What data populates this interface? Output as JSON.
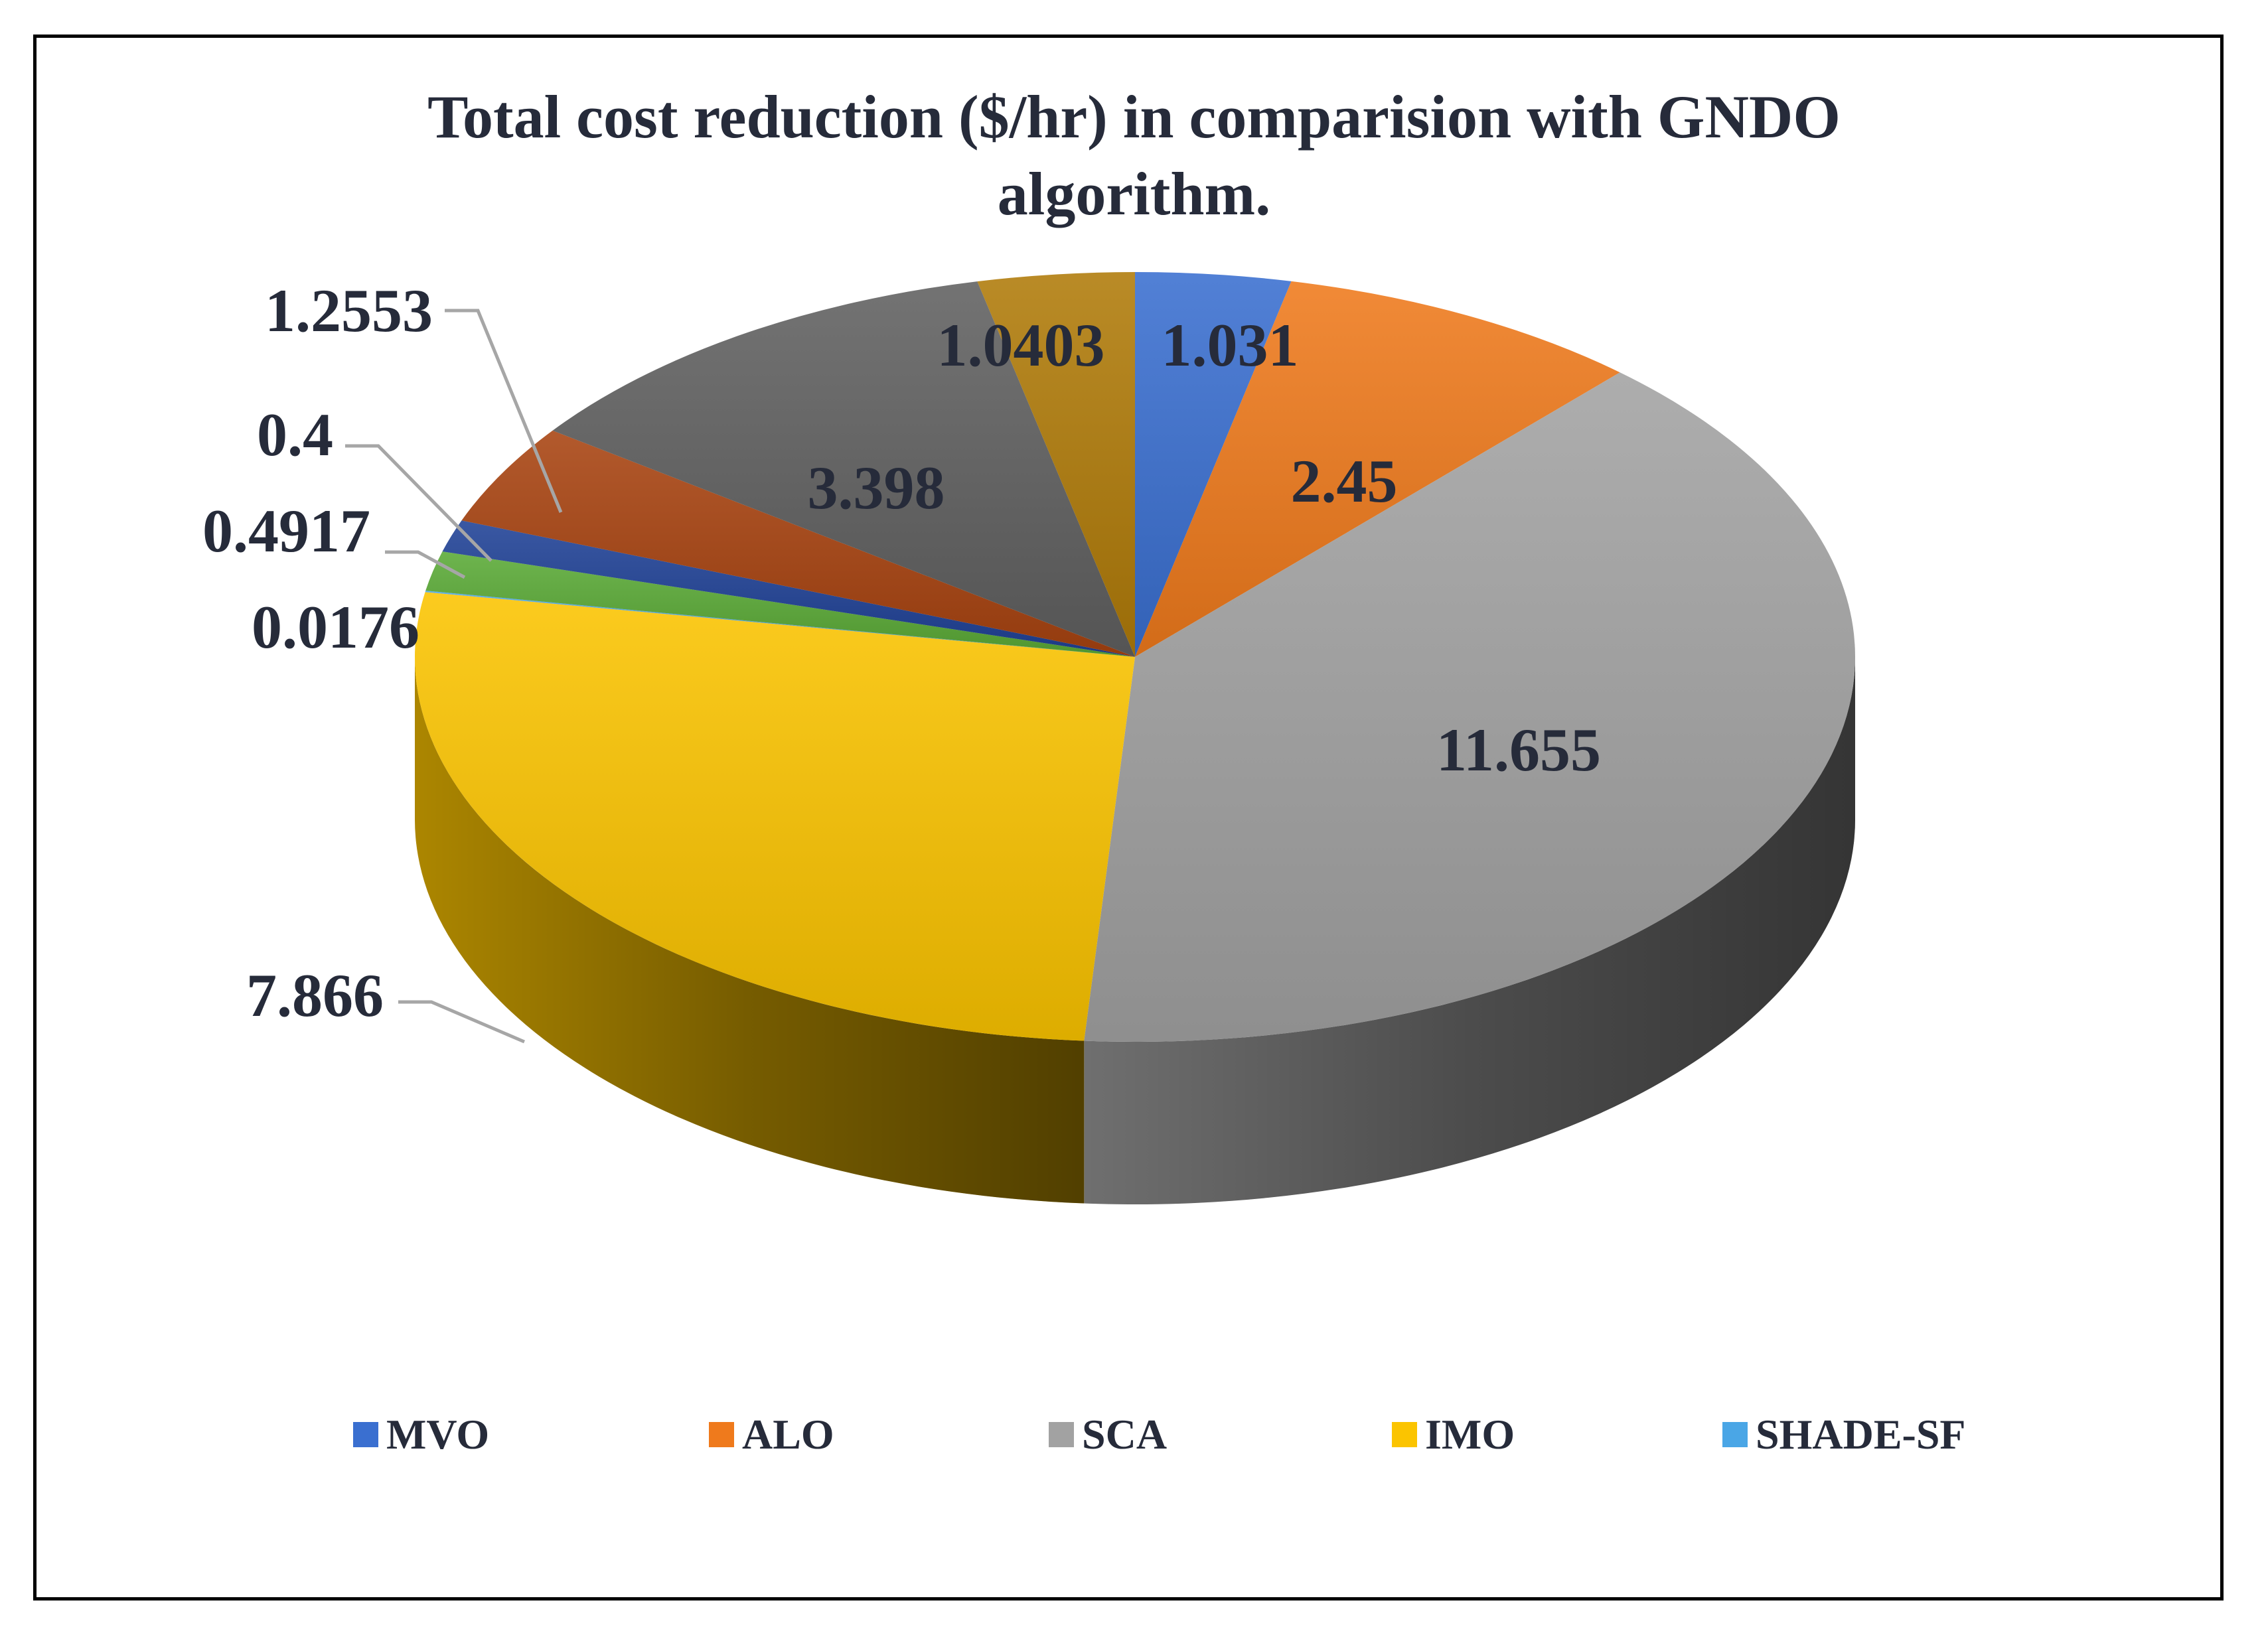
{
  "chart_data": {
    "type": "pie",
    "style": "3d",
    "title": "Total cost reduction ($/hr) in comparision with GNDO algorithm.",
    "title_lines": [
      "Total cost reduction ($/hr) in comparision with GNDO",
      "algorithm."
    ],
    "slices": [
      {
        "name": "MVO",
        "label": "1.031",
        "value": 1.031,
        "color": "#3a6fd0"
      },
      {
        "name": "ALO",
        "label": "2.45",
        "value": 2.45,
        "color": "#ef7a1c"
      },
      {
        "name": "SCA",
        "label": "11.655",
        "value": 11.655,
        "color": "#a2a2a2"
      },
      {
        "name": "IMO",
        "label": "7.866",
        "value": 7.866,
        "color": "#fbc400"
      },
      {
        "name": "SHADE-SF",
        "label": "0.0176",
        "value": 0.0176,
        "color": "#4aa6e6"
      },
      {
        "name": "",
        "label": "0.4917",
        "value": 0.4917,
        "color": "#5aaa36"
      },
      {
        "name": "",
        "label": "0.4",
        "value": 0.4,
        "color": "#1f4196"
      },
      {
        "name": "",
        "label": "1.2553",
        "value": 1.2553,
        "color": "#a84310"
      },
      {
        "name": "",
        "label": "3.398",
        "value": 3.398,
        "color": "#606060"
      },
      {
        "name": "",
        "label": "1.0403",
        "value": 1.0403,
        "color": "#b07b09"
      }
    ],
    "legend": [
      {
        "label": "MVO",
        "color": "#3a6fd0"
      },
      {
        "label": "ALO",
        "color": "#ef7a1c"
      },
      {
        "label": "SCA",
        "color": "#a2a2a2"
      },
      {
        "label": "IMO",
        "color": "#fbc400"
      },
      {
        "label": "SHADE-SF",
        "color": "#4aa6e6"
      }
    ]
  }
}
